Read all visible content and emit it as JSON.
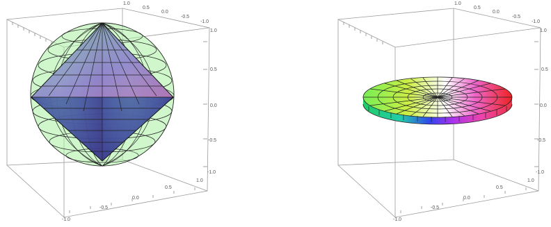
{
  "left_plot": {
    "top_axis_labels": [
      "1.0",
      "0.5",
      "0.0",
      "-0.5",
      "-1.0"
    ],
    "right_axis_labels": [
      "1.0",
      "0.5",
      "0.0",
      "-0.5",
      "-1.0"
    ],
    "front_axis_labels": [
      "1.0",
      "0.5",
      "0.0",
      "-0.5",
      "-1.0"
    ],
    "colors": {
      "sphere": "#a8f0a0",
      "box": "#9a9a9a"
    }
  },
  "right_plot": {
    "top_axis_labels": [
      "1.0",
      "0.5",
      "0.0",
      "-0.5",
      "-1.0"
    ],
    "right_axis_labels": [
      "1.0",
      "0.5",
      "0.0",
      "-0.5",
      "-1.0"
    ],
    "front_axis_labels": [
      "1.0",
      "0.5",
      "0.0",
      "-0.5",
      "-1.0"
    ],
    "colors": {
      "box": "#9a9a9a"
    }
  }
}
